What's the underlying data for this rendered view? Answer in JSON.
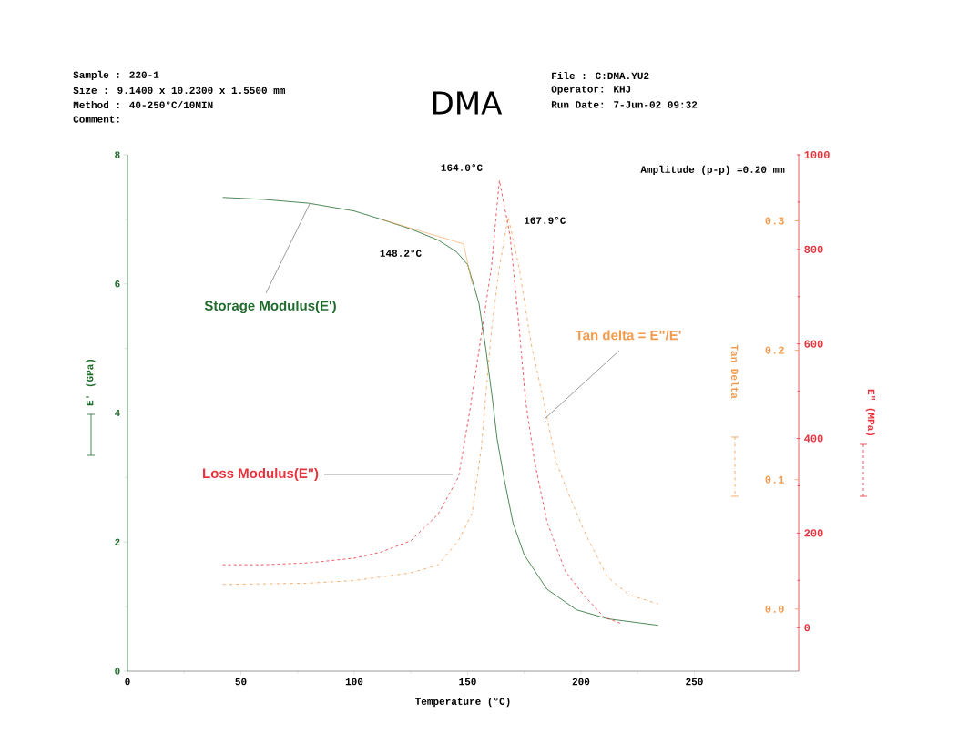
{
  "chart_data": {
    "type": "line",
    "title": "DMA",
    "xlabel": "Temperature (°C)",
    "ylabel": "E' (GPa)",
    "y2label": "E\" (MPa)",
    "y3label": "Tan Delta",
    "xlim": [
      0,
      296
    ],
    "xticks": [
      0,
      50,
      100,
      150,
      200,
      250
    ],
    "ylim": [
      0,
      8
    ],
    "yticks": [
      0,
      2,
      4,
      6,
      8
    ],
    "y2lim": [
      -92,
      1000
    ],
    "y2ticks": [
      0,
      200,
      400,
      600,
      800,
      1000
    ],
    "y3lim": [
      -0.048,
      0.351
    ],
    "y3ticks": [
      {
        "value": 0,
        "label": "0.0"
      },
      {
        "value": 0.1,
        "label": "0.1"
      },
      {
        "value": 0.2,
        "label": "0.2"
      },
      {
        "value": 0.3,
        "label": "0.3"
      }
    ],
    "grid": false,
    "marker": "none",
    "series": [
      {
        "name": "Storage Modulus(E')",
        "color": "#1f6b2c",
        "axis": "y",
        "line_style": "solid",
        "x": [
          42,
          60,
          80,
          100,
          112,
          125,
          137,
          145,
          150,
          155,
          158,
          161,
          163,
          166,
          170,
          175,
          185,
          198,
          212,
          234
        ],
        "values": [
          7.34,
          7.31,
          7.25,
          7.13,
          7.0,
          6.85,
          6.68,
          6.5,
          6.3,
          5.7,
          5.0,
          4.2,
          3.6,
          3.0,
          2.3,
          1.8,
          1.27,
          0.95,
          0.81,
          0.71
        ]
      },
      {
        "name": "Loss Modulus(E\")",
        "color": "#e8323c",
        "axis": "y2",
        "line_style": "dashed",
        "x": [
          42,
          60,
          80,
          100,
          112,
          125,
          137,
          146,
          151,
          156.6,
          160.6,
          164,
          168.7,
          172.7,
          175.5,
          179.5,
          185,
          193,
          201,
          210,
          218
        ],
        "values": [
          133,
          133,
          137,
          147,
          160,
          184,
          240,
          319,
          460,
          636,
          766,
          946,
          830,
          636,
          482,
          352,
          224,
          120,
          70,
          23,
          8
        ]
      },
      {
        "name": "Tan delta = E\"/E'",
        "color": "#f39a4c",
        "axis": "y3",
        "line_style": "dashdot",
        "x": [
          42,
          80,
          100,
          125,
          137,
          146,
          152,
          156,
          160.6,
          164,
          167.9,
          172.7,
          178,
          183.5,
          189,
          194,
          202,
          211.6,
          221,
          234
        ],
        "values": [
          0.019,
          0.02,
          0.022,
          0.028,
          0.034,
          0.053,
          0.074,
          0.124,
          0.217,
          0.264,
          0.303,
          0.264,
          0.205,
          0.161,
          0.114,
          0.091,
          0.058,
          0.025,
          0.011,
          0.004
        ]
      },
      {
        "color": "#f39a4c",
        "axis": "y",
        "line_style": "solid",
        "x": [
          112,
          148.2,
          152
        ],
        "values": [
          7.0,
          6.62,
          6.0
        ]
      }
    ],
    "annotations": [
      "Sample : 220-1",
      "Size : 9.1400 x 10.2300 x 1.5500 mm",
      "Method : 40-250°C/10MIN",
      "Comment:",
      "File : C:DMA.YU2",
      "Operator: KHJ",
      "Run Date: 7-Jun-02 09:32",
      "Amplitude (p-p) =0.20 mm",
      "164.0°C",
      "167.9°C",
      "148.2°C"
    ]
  }
}
